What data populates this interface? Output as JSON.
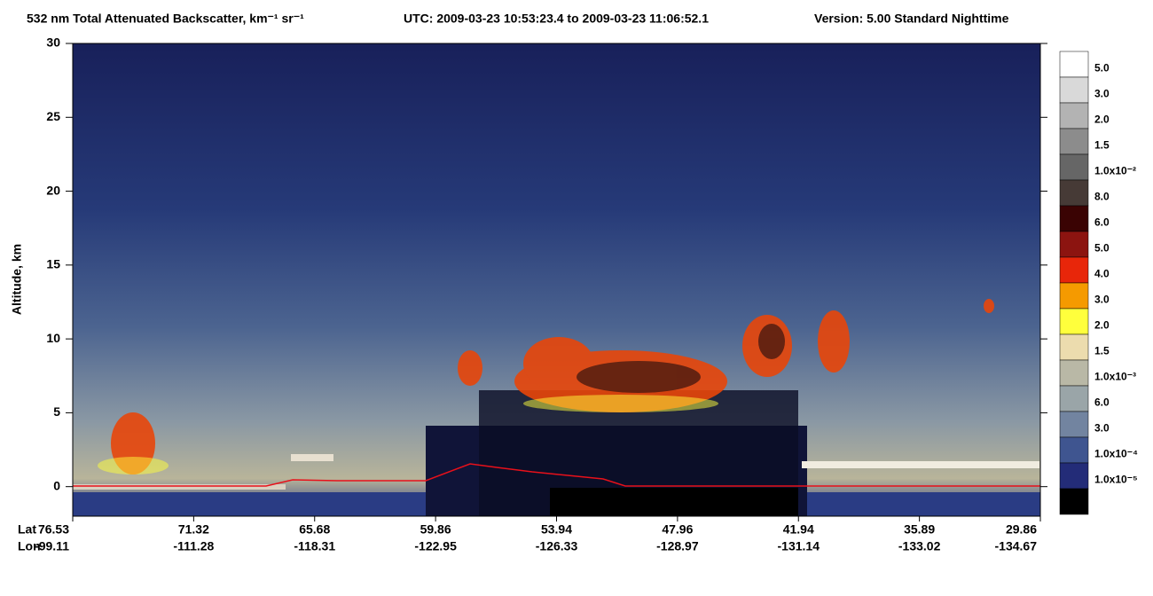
{
  "chart_data": {
    "type": "curtain",
    "title": "532 nm Total Attenuated Backscatter, km⁻¹ sr⁻¹",
    "time_range": "UTC:  2009-03-23 10:53:23.4  to  2009-03-23 11:06:52.1",
    "version": "Version: 5.00  Standard  Nighttime",
    "y_label": "Altitude, km",
    "ylim": [
      -2,
      30
    ],
    "yticks": [
      0,
      5,
      10,
      15,
      20,
      25,
      30
    ],
    "lat_label": "Lat",
    "lon_label": "Lon",
    "lat": [
      "76.53",
      "71.32",
      "65.68",
      "59.86",
      "53.94",
      "47.96",
      "41.94",
      "35.89",
      "29.86"
    ],
    "lon": [
      "-99.11",
      "-111.28",
      "-118.31",
      "-122.95",
      "-126.33",
      "-128.97",
      "-131.14",
      "-133.02",
      "-134.67"
    ],
    "colorbar": {
      "labels": [
        "5.0",
        "3.0",
        "2.0",
        "1.5",
        "1.0x10⁻²",
        "8.0",
        "6.0",
        "5.0",
        "4.0",
        "3.0",
        "2.0",
        "1.5",
        "1.0x10⁻³",
        "6.0",
        "3.0",
        "1.0x10⁻⁴",
        "1.0x10⁻⁵",
        null
      ],
      "colors": [
        "#ffffff",
        "#d9d9d9",
        "#b3b3b3",
        "#8c8c8c",
        "#666666",
        "#463a36",
        "#3a0303",
        "#8c1410",
        "#e8260a",
        "#f59a00",
        "#ffff3c",
        "#ecdcae",
        "#b9b8a6",
        "#9aa5a8",
        "#7284a0",
        "#3f5590",
        "#232c78",
        "#000000"
      ]
    }
  }
}
